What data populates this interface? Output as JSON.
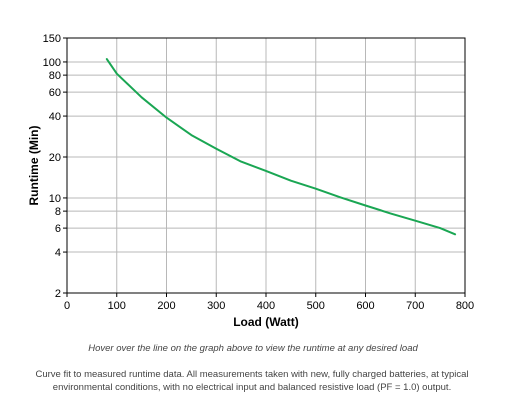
{
  "chart_data": {
    "type": "line",
    "xlabel": "Load (Watt)",
    "ylabel": "Runtime (Min)",
    "xlim": [
      0,
      800
    ],
    "ylim": [
      2,
      150
    ],
    "yscale": "log",
    "grid": true,
    "x_ticks": [
      0,
      100,
      200,
      300,
      400,
      500,
      600,
      700,
      800
    ],
    "y_ticks": [
      2,
      4,
      6,
      8,
      10,
      20,
      40,
      60,
      80,
      100,
      150
    ],
    "series": [
      {
        "color": "#1aa653",
        "x": [
          80,
          100,
          150,
          200,
          250,
          300,
          350,
          400,
          450,
          500,
          550,
          600,
          650,
          700,
          750,
          780
        ],
        "y": [
          105,
          82,
          55,
          39,
          29,
          23,
          18.5,
          15.8,
          13.4,
          11.7,
          10.1,
          8.8,
          7.7,
          6.8,
          6.0,
          5.4
        ]
      }
    ]
  },
  "hint_text": "Hover over the line on the graph above to view the runtime at any desired load",
  "caption_text": "Curve fit to measured runtime data. All measurements taken with new, fully charged batteries, at typical environmental conditions, with no electrical input and balanced resistive load (PF = 1.0) output."
}
